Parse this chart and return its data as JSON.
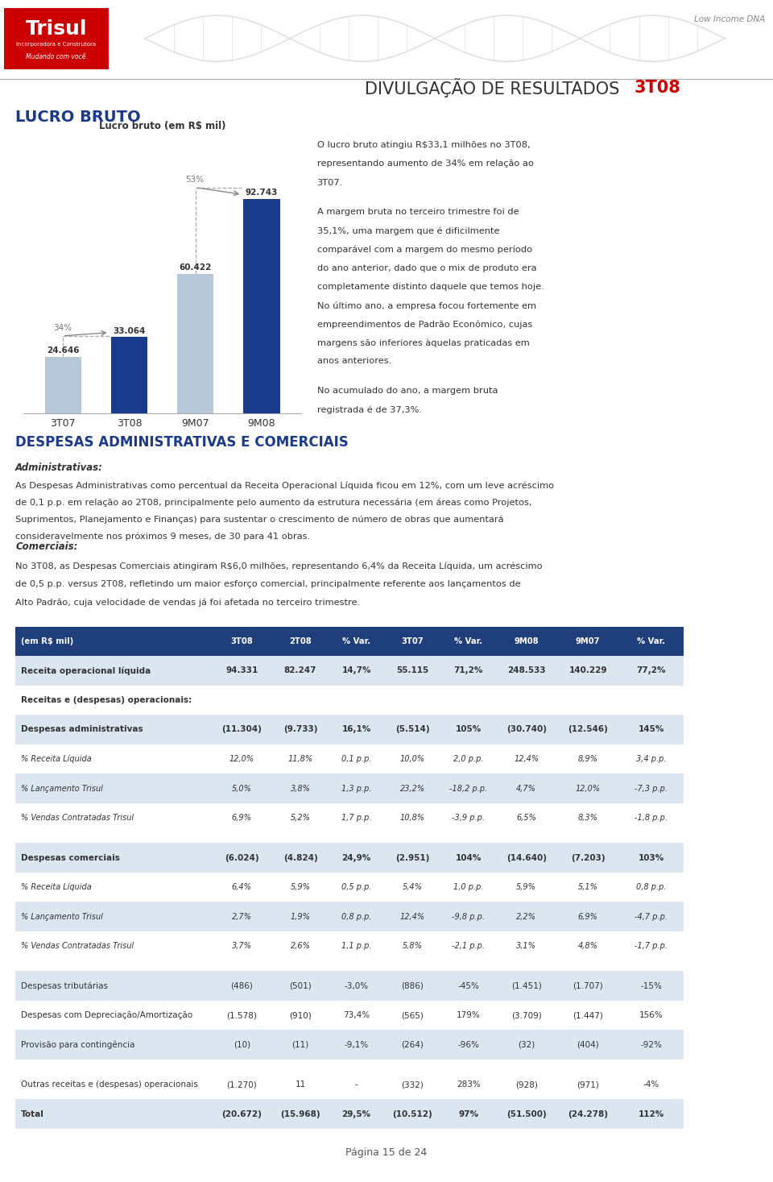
{
  "title_main": "DIVULGAÇÃO DE RESULTADOS ",
  "title_highlight": "3T08",
  "section1_title": "LUCRO BRUTO",
  "chart_title": "Lucro bruto (em R$ mil)",
  "categories": [
    "3T07",
    "3T08",
    "9M07",
    "9M08"
  ],
  "values": [
    24.646,
    33.064,
    60.422,
    92.743
  ],
  "bar_colors": [
    "#b8c8d8",
    "#1a3a8c",
    "#b8c8d8",
    "#1a3a8c"
  ],
  "growth_labels": [
    "34%",
    "53%"
  ],
  "value_labels": [
    "24.646",
    "33.064",
    "60.422",
    "92.743"
  ],
  "right_text_lines": [
    "O lucro bruto atingiu R$33,1 milhões no 3T08,",
    "representando aumento de 34% em relação ao",
    "3T07.",
    "",
    "A margem bruta no terceiro trimestre foi de",
    "35,1%, uma margem que é dificilmente",
    "comparável com a margem do mesmo período",
    "do ano anterior, dado que o mix de produto era",
    "completamente distinto daquele que temos hoje.",
    "No último ano, a empresa focou fortemente em",
    "empreendimentos de Padrão Econômico, cujas",
    "margens são inferiores àquelas praticadas em",
    "anos anteriores.",
    "",
    "No acumulado do ano, a margem bruta",
    "registrada é de 37,3%."
  ],
  "section2_title": "DESPESAS ADMINISTRATIVAS E COMERCIAIS",
  "admin_subtitle": "Administrativas:",
  "admin_text": "As Despesas Administrativas como percentual da Receita Operacional Líquida ficou em 12%, com um leve acréscimo de 0,1 p.p. em relação ao 2T08, principalmente pelo aumento da estrutura necessária (em áreas como Projetos, Suprimentos, Planejamento e Finanças) para sustentar o crescimento de número de obras que aumentará consideravelmente nos próximos 9 meses, de 30 para 41 obras.",
  "comerciais_subtitle": "Comerciais:",
  "comerciais_text": "No 3T08, as Despesas Comerciais atingiram R$6,0 milhões, representando 6,4% da Receita Líquida, um acréscimo de 0,5 p.p. versus 2T08, refletindo um maior esforço comercial, principalmente referente aos lançamentos de Alto Padrão, cuja velocidade de vendas já foi afetada no terceiro trimestre.",
  "table_headers": [
    "(em R$ mil)",
    "3T08",
    "2T08",
    "% Var.",
    "3T07",
    "% Var.",
    "9M08",
    "9M07",
    "% Var."
  ],
  "table_rows": [
    [
      "Receita operacional líquida",
      "94.331",
      "82.247",
      "14,7%",
      "55.115",
      "71,2%",
      "248.533",
      "140.229",
      "77,2%"
    ],
    [
      "Receitas e (despesas) operacionais:",
      "",
      "",
      "",
      "",
      "",
      "",
      "",
      ""
    ],
    [
      "Despesas administrativas",
      "(11.304)",
      "(9.733)",
      "16,1%",
      "(5.514)",
      "105%",
      "(30.740)",
      "(12.546)",
      "145%"
    ],
    [
      "% Receita Líquida",
      "12,0%",
      "11,8%",
      "0,1 p.p.",
      "10,0%",
      "2,0 p.p.",
      "12,4%",
      "8,9%",
      "3,4 p.p."
    ],
    [
      "% Lançamento Trisul",
      "5,0%",
      "3,8%",
      "1,3 p.p.",
      "23,2%",
      "-18,2 p.p.",
      "4,7%",
      "12,0%",
      "-7,3 p.p."
    ],
    [
      "% Vendas Contratadas Trisul",
      "6,9%",
      "5,2%",
      "1,7 p.p.",
      "10,8%",
      "-3,9 p.p.",
      "6,5%",
      "8,3%",
      "-1,8 p.p."
    ],
    [
      "SPACER",
      "",
      "",
      "",
      "",
      "",
      "",
      "",
      ""
    ],
    [
      "Despesas comerciais",
      "(6.024)",
      "(4.824)",
      "24,9%",
      "(2.951)",
      "104%",
      "(14.640)",
      "(7.203)",
      "103%"
    ],
    [
      "% Receita Líquida",
      "6,4%",
      "5,9%",
      "0,5 p.p.",
      "5,4%",
      "1,0 p.p.",
      "5,9%",
      "5,1%",
      "0,8 p.p."
    ],
    [
      "% Lançamento Trisul",
      "2,7%",
      "1,9%",
      "0,8 p.p.",
      "12,4%",
      "-9,8 p.p.",
      "2,2%",
      "6,9%",
      "-4,7 p.p."
    ],
    [
      "% Vendas Contratadas Trisul",
      "3,7%",
      "2,6%",
      "1,1 p.p.",
      "5,8%",
      "-2,1 p.p.",
      "3,1%",
      "4,8%",
      "-1,7 p.p."
    ],
    [
      "SPACER",
      "",
      "",
      "",
      "",
      "",
      "",
      "",
      ""
    ],
    [
      "Despesas tributárias",
      "(486)",
      "(501)",
      "-3,0%",
      "(886)",
      "-45%",
      "(1.451)",
      "(1.707)",
      "-15%"
    ],
    [
      "Despesas com Depreciação/Amortização",
      "(1.578)",
      "(910)",
      "73,4%",
      "(565)",
      "179%",
      "(3.709)",
      "(1.447)",
      "156%"
    ],
    [
      "Provisão para contingência",
      "(10)",
      "(11)",
      "-9,1%",
      "(264)",
      "-96%",
      "(32)",
      "(404)",
      "-92%"
    ],
    [
      "SPACER",
      "",
      "",
      "",
      "",
      "",
      "",
      "",
      ""
    ],
    [
      "Outras receitas e (despesas) operacionais",
      "(1.270)",
      "11",
      "-",
      "(332)",
      "283%",
      "(928)",
      "(971)",
      "-4%"
    ],
    [
      "Total",
      "(20.672)",
      "(15.968)",
      "29,5%",
      "(10.512)",
      "97%",
      "(51.500)",
      "(24.278)",
      "112%"
    ]
  ],
  "header_bg": "#1f3e7c",
  "header_fg": "#ffffff",
  "row_alt_bg": "#dce6f1",
  "row_normal_bg": "#ffffff",
  "footer_text": "Página 15 de 24",
  "low_income_text": "Low Income DNA",
  "background_color": "#ffffff",
  "title_color": "#333333",
  "highlight_color": "#cc0000",
  "section_color": "#1a3a8c",
  "text_color": "#333333"
}
